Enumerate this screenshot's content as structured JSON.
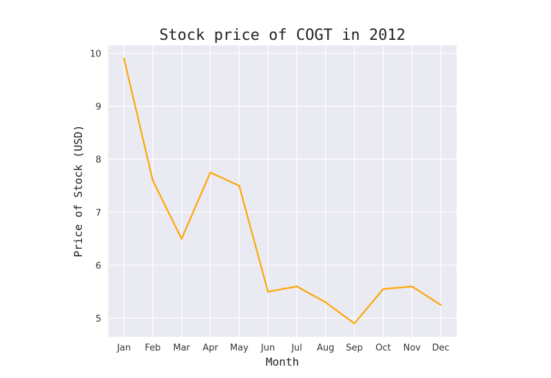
{
  "chart_data": {
    "type": "line",
    "title": "Stock price of COGT in 2012",
    "xlabel": "Month",
    "ylabel": "Price of Stock (USD)",
    "categories": [
      "Jan",
      "Feb",
      "Mar",
      "Apr",
      "May",
      "Jun",
      "Jul",
      "Aug",
      "Sep",
      "Oct",
      "Nov",
      "Dec"
    ],
    "values": [
      9.9,
      7.6,
      6.5,
      7.75,
      7.5,
      5.5,
      5.6,
      5.3,
      4.9,
      5.55,
      5.6,
      5.25
    ],
    "yticks": [
      "5",
      "6",
      "7",
      "8",
      "9",
      "10"
    ],
    "ylim": [
      4.65,
      10.15
    ],
    "grid": true,
    "line_color": "#ffa500",
    "plot_background": "#eaeaf2",
    "grid_color": "#ffffff"
  }
}
